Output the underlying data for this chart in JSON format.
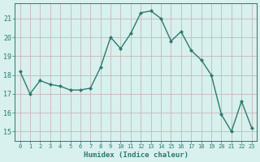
{
  "x": [
    0,
    1,
    2,
    3,
    4,
    5,
    6,
    7,
    8,
    9,
    10,
    11,
    12,
    13,
    14,
    15,
    16,
    17,
    18,
    19,
    20,
    21,
    22,
    23
  ],
  "y": [
    18.2,
    17.0,
    17.7,
    17.5,
    17.4,
    17.2,
    17.2,
    17.3,
    18.4,
    20.0,
    19.4,
    20.2,
    21.3,
    21.4,
    21.0,
    19.8,
    20.3,
    19.3,
    18.8,
    18.0,
    15.9,
    15.0,
    16.6,
    15.2
  ],
  "line_color": "#2d7a6e",
  "marker": "D",
  "marker_size": 2.0,
  "line_width": 1.0,
  "bg_color": "#d8f0ee",
  "grid_color": "#c8b8b8",
  "tick_color": "#2d7a6e",
  "label_color": "#2d7a6e",
  "xlabel": "Humidex (Indice chaleur)",
  "xlim": [
    -0.5,
    23.5
  ],
  "ylim": [
    14.5,
    21.8
  ],
  "yticks": [
    15,
    16,
    17,
    18,
    19,
    20,
    21
  ],
  "xticks": [
    0,
    1,
    2,
    3,
    4,
    5,
    6,
    7,
    8,
    9,
    10,
    11,
    12,
    13,
    14,
    15,
    16,
    17,
    18,
    19,
    20,
    21,
    22,
    23
  ]
}
